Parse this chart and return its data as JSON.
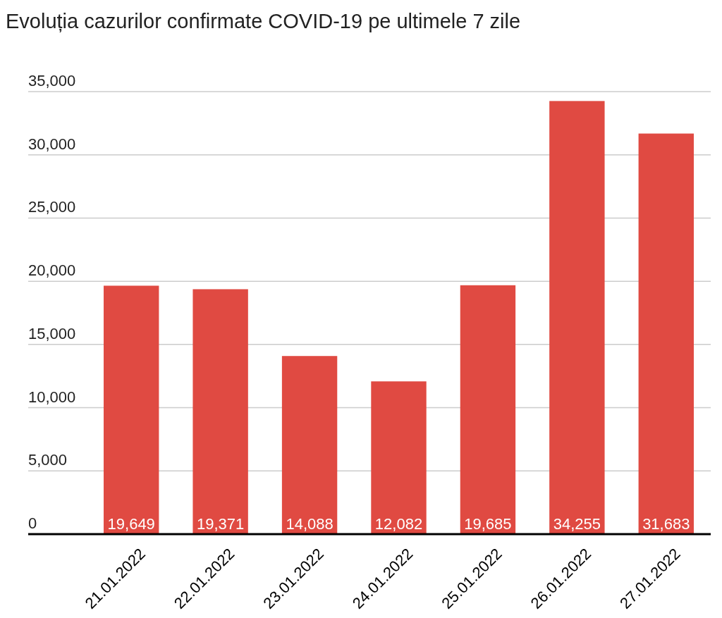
{
  "chart_data": {
    "type": "bar",
    "title": "Evoluția cazurilor confirmate COVID-19 pe ultimele 7 zile",
    "categories": [
      "21.01.2022",
      "22.01.2022",
      "23.01.2022",
      "24.01.2022",
      "25.01.2022",
      "26.01.2022",
      "27.01.2022"
    ],
    "values": [
      19649,
      19371,
      14088,
      12082,
      19685,
      34255,
      31683
    ],
    "value_labels": [
      "19,649",
      "19,371",
      "14,088",
      "12,082",
      "19,685",
      "34,255",
      "31,683"
    ],
    "color": "#e04a42",
    "ylim": [
      0,
      35000
    ],
    "yticks": [
      {
        "value": 0,
        "label": "0"
      },
      {
        "value": 5000,
        "label": "5,000"
      },
      {
        "value": 10000,
        "label": "10,000"
      },
      {
        "value": 15000,
        "label": "15,000"
      },
      {
        "value": 20000,
        "label": "20,000"
      },
      {
        "value": 25000,
        "label": "25,000"
      },
      {
        "value": 30000,
        "label": "30,000"
      },
      {
        "value": 35000,
        "label": "35,000"
      }
    ],
    "grid": "y"
  }
}
